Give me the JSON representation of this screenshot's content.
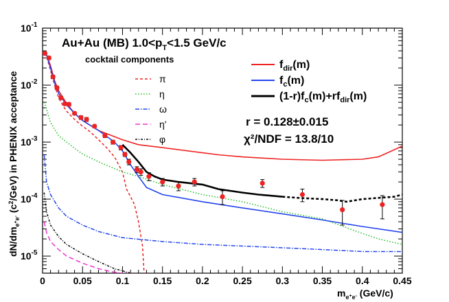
{
  "chart_data": {
    "type": "line",
    "title_main": "Au+Au (MB) 1.0<p",
    "title_sub": "T",
    "title_tail": "<1.5 GeV/c",
    "ylabel": {
      "p1": "dN/dm",
      "s1": "e",
      "s1b": "+",
      "s1c": "e",
      "s1d": "-",
      "p2": " (c",
      "sup2": "2",
      "p3": "/GeV) in PHENIX acceptance"
    },
    "xlabel": {
      "base": "m",
      "sub": "e",
      "subsup1": "+",
      "sub2": "e",
      "subsup2": "-",
      "tail": " (GeV/c)"
    },
    "xlim": [
      0,
      0.45
    ],
    "ylim_log10": [
      -5.3,
      -1
    ],
    "x_ticks": [
      "0",
      "0.05",
      "0.1",
      "0.15",
      "0.2",
      "0.25",
      "0.3",
      "0.35",
      "0.4",
      "0.45"
    ],
    "y_ticks": [
      {
        "base": "10",
        "exp": "-1"
      },
      {
        "base": "10",
        "exp": "-2"
      },
      {
        "base": "10",
        "exp": "-3"
      },
      {
        "base": "10",
        "exp": "-4"
      },
      {
        "base": "10",
        "exp": "-5"
      }
    ],
    "cocktail_header": "cocktail components",
    "cocktail_legend": [
      {
        "label": "π",
        "color": "#ee2222",
        "dash": "4,3"
      },
      {
        "label": "η",
        "color": "#22bb22",
        "dash": "1.5,2.5"
      },
      {
        "label": "ω",
        "color": "#2244ee",
        "dash": "6,2,1.5,2"
      },
      {
        "label": "η'",
        "color": "#ee33cc",
        "dash": "7,4"
      },
      {
        "label": "φ",
        "color": "#000000",
        "dash": "3,2,1,2"
      }
    ],
    "fit_legend": {
      "fdir": {
        "base": "f",
        "sub": "dir",
        "tail": "(m)",
        "color": "#ee2222"
      },
      "fc": {
        "base": "f",
        "sub": "c",
        "tail": "(m)",
        "color": "#2244ee"
      },
      "fsum": {
        "text": "(1-r)f",
        "sub1": "c",
        "mid": "(m)+rf",
        "sub2": "dir",
        "tail": "(m)",
        "color": "#000000"
      }
    },
    "r_text": "r = 0.128±0.015",
    "chi_text": "χ²/NDF = 13.8/10",
    "series": [
      {
        "key": "pi",
        "color": "#ee2222",
        "dash": "4,3",
        "x": [
          0.001,
          0.005,
          0.01,
          0.015,
          0.02,
          0.025,
          0.03,
          0.04,
          0.05,
          0.06,
          0.07,
          0.08,
          0.09,
          0.1,
          0.105,
          0.11,
          0.115,
          0.12,
          0.125,
          0.127
        ],
        "y": [
          0.035,
          0.032,
          0.018,
          0.01,
          0.006,
          0.0045,
          0.0035,
          0.0025,
          0.0019,
          0.0015,
          0.0011,
          0.0008,
          0.00055,
          0.0003,
          0.00015,
          0.00011,
          8e-05,
          4e-05,
          1.5e-05,
          5e-06
        ]
      },
      {
        "key": "eta",
        "color": "#22bb22",
        "dash": "1.5,2.5",
        "x": [
          0.002,
          0.005,
          0.01,
          0.02,
          0.03,
          0.04,
          0.05,
          0.07,
          0.1,
          0.12,
          0.15,
          0.2,
          0.25,
          0.3,
          0.35,
          0.4,
          0.42,
          0.45
        ],
        "y": [
          0.005,
          0.0038,
          0.0022,
          0.0013,
          0.001,
          0.00078,
          0.00062,
          0.00045,
          0.0003,
          0.00025,
          0.00018,
          0.00012,
          9e-05,
          6e-05,
          4.5e-05,
          2.5e-05,
          2e-05,
          1.6e-05
        ]
      },
      {
        "key": "omega",
        "color": "#2244ee",
        "dash": "6,2,1.5,2",
        "x": [
          0.002,
          0.005,
          0.01,
          0.02,
          0.03,
          0.05,
          0.07,
          0.1,
          0.15,
          0.2,
          0.25,
          0.3,
          0.35,
          0.4,
          0.45
        ],
        "y": [
          0.0006,
          0.0002,
          0.00012,
          7e-05,
          5e-05,
          3.5e-05,
          2.7e-05,
          2.1e-05,
          1.8e-05,
          1.6e-05,
          1.5e-05,
          1.4e-05,
          1.3e-05,
          1.2e-05,
          1.2e-05
        ]
      },
      {
        "key": "etaprime",
        "color": "#ee33cc",
        "dash": "7,4",
        "x": [
          0.002,
          0.005,
          0.01,
          0.02,
          0.03,
          0.05,
          0.07,
          0.09,
          0.1,
          0.12,
          0.15,
          0.2,
          0.25,
          0.3,
          0.35,
          0.4,
          0.45
        ],
        "y": [
          4e-05,
          2.6e-05,
          1.8e-05,
          1.3e-05,
          1e-05,
          7.5e-06,
          6e-06,
          5.2e-06,
          5e-06,
          4.9e-06,
          4.9e-06,
          4.9e-06,
          4.9e-06,
          4.9e-06,
          4.9e-06,
          4.9e-06,
          4.9e-06
        ]
      },
      {
        "key": "phi",
        "color": "#000000",
        "dash": "3,2,1,2",
        "x": [
          0.002,
          0.005,
          0.01,
          0.02,
          0.03,
          0.05,
          0.07,
          0.09,
          0.1,
          0.11,
          0.12
        ],
        "y": [
          0.00013,
          6e-05,
          3.5e-05,
          2.2e-05,
          1.6e-05,
          1.1e-05,
          8e-06,
          6e-06,
          5.5e-06,
          5e-06,
          4.9e-06
        ]
      },
      {
        "key": "fdir",
        "color": "#ee2222",
        "dash": "",
        "x": [
          0.001,
          0.005,
          0.01,
          0.015,
          0.02,
          0.03,
          0.04,
          0.05,
          0.07,
          0.1,
          0.12,
          0.15,
          0.2,
          0.22,
          0.25,
          0.3,
          0.35,
          0.4,
          0.42,
          0.45
        ],
        "y": [
          0.037,
          0.034,
          0.022,
          0.012,
          0.008,
          0.0048,
          0.0032,
          0.0024,
          0.0016,
          0.0011,
          0.0009,
          0.0008,
          0.00065,
          0.0006,
          0.00055,
          0.0005,
          0.00048,
          0.0005,
          0.00055,
          0.00085
        ]
      },
      {
        "key": "fc",
        "color": "#2244ee",
        "dash": "",
        "x": [
          0.001,
          0.005,
          0.01,
          0.015,
          0.02,
          0.03,
          0.04,
          0.05,
          0.07,
          0.09,
          0.1,
          0.11,
          0.12,
          0.13,
          0.15,
          0.2,
          0.25,
          0.3,
          0.35,
          0.4,
          0.45
        ],
        "y": [
          0.038,
          0.034,
          0.02,
          0.011,
          0.0072,
          0.0045,
          0.0032,
          0.0024,
          0.0016,
          0.001,
          0.0007,
          0.0004,
          0.00025,
          0.00016,
          0.00012,
          9e-05,
          7e-05,
          5.5e-05,
          4.3e-05,
          3.3e-05,
          2.6e-05
        ]
      },
      {
        "key": "fsum",
        "color": "#000000",
        "dash": "",
        "x": [
          0.1,
          0.11,
          0.12,
          0.13,
          0.14,
          0.15,
          0.17,
          0.2,
          0.22,
          0.25,
          0.27,
          0.3
        ],
        "y": [
          0.0009,
          0.00065,
          0.00045,
          0.0003,
          0.00025,
          0.00022,
          0.0002,
          0.00018,
          0.00015,
          0.00013,
          0.00012,
          0.00011
        ]
      },
      {
        "key": "fsum_ext",
        "color": "#000000",
        "dash": "4,3",
        "x": [
          0.3,
          0.32,
          0.35,
          0.37,
          0.38,
          0.4,
          0.42,
          0.44,
          0.45
        ],
        "y": [
          0.00011,
          0.000105,
          0.0001,
          9.5e-05,
          9e-05,
          0.0001,
          0.000105,
          0.00011,
          0.00012
        ]
      }
    ],
    "data_points": {
      "color": "#ee2222",
      "x": [
        0.003,
        0.008,
        0.013,
        0.018,
        0.023,
        0.028,
        0.033,
        0.04,
        0.048,
        0.055,
        0.065,
        0.078,
        0.088,
        0.098,
        0.103,
        0.108,
        0.118,
        0.123,
        0.133,
        0.15,
        0.17,
        0.19,
        0.225,
        0.275,
        0.325,
        0.375,
        0.425
      ],
      "y": [
        0.036,
        0.03,
        0.014,
        0.009,
        0.006,
        0.0047,
        0.0046,
        0.0032,
        0.0027,
        0.0025,
        0.0019,
        0.0013,
        0.001,
        0.0008,
        0.00061,
        0.00045,
        0.00033,
        0.0003,
        0.00025,
        0.0002,
        0.00017,
        0.0002,
        0.00011,
        0.00019,
        0.00012,
        6.5e-05,
        8e-05
      ],
      "err": [
        0.002,
        0.002,
        0.001,
        0.0006,
        0.0004,
        0.0003,
        0.0003,
        0.0002,
        0.0002,
        0.0002,
        0.0001,
        0.0001,
        8e-05,
        7e-05,
        5e-05,
        5e-05,
        4e-05,
        4e-05,
        4e-05,
        3e-05,
        3e-05,
        3e-05,
        3e-05,
        3e-05,
        3e-05,
        3e-05,
        3.5e-05
      ]
    }
  }
}
